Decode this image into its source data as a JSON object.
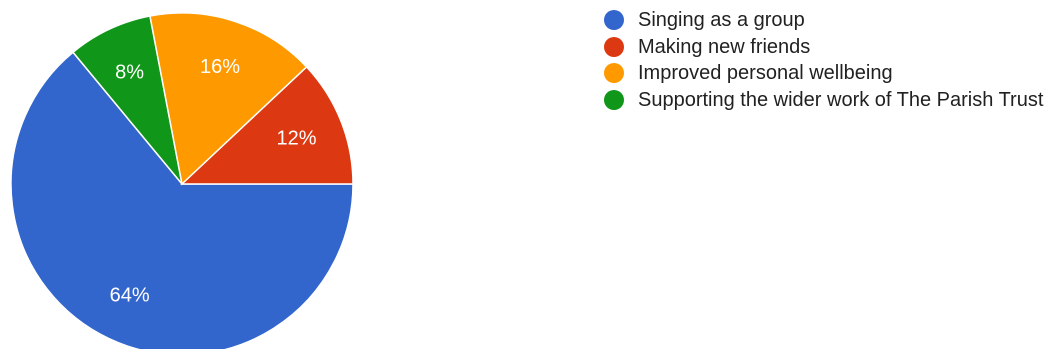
{
  "chart_data": {
    "type": "pie",
    "title": "",
    "slices": [
      {
        "label": "Singing as a group",
        "value": 64,
        "display": "64%",
        "color": "#3366cc"
      },
      {
        "label": "Making new friends",
        "value": 12,
        "display": "12%",
        "color": "#dc3912"
      },
      {
        "label": "Improved personal wellbeing",
        "value": 16,
        "display": "16%",
        "color": "#ff9900"
      },
      {
        "label": "Supporting the wider work of The Parish Trust",
        "value": 8,
        "display": "8%",
        "color": "#109618"
      }
    ],
    "legend": {
      "position": "right",
      "entries": [
        "Singing as a group",
        "Making new friends",
        "Improved personal wellbeing",
        "Supporting the wider work of The Parish Trust"
      ]
    }
  }
}
